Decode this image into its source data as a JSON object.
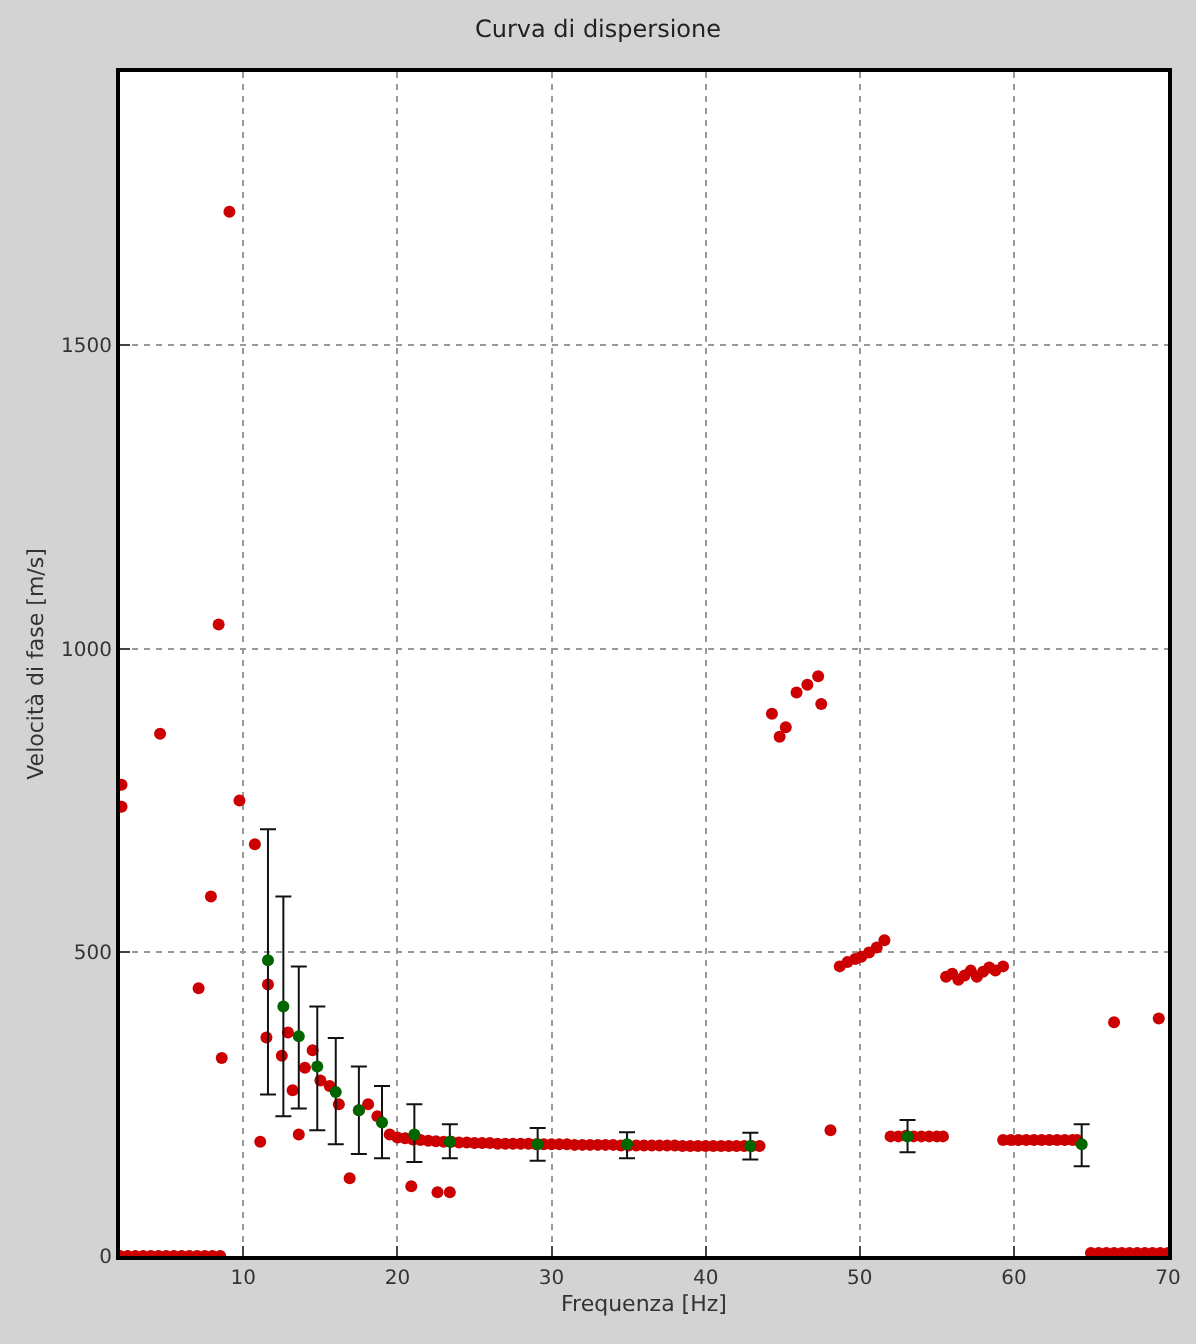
{
  "chart_data": {
    "type": "scatter",
    "title": "Curva di dispersione",
    "xlabel": "Frequenza [Hz]",
    "ylabel": "Velocità di fase [m/s]",
    "xlim": [
      2,
      70
    ],
    "ylim": [
      0,
      1950
    ],
    "xticks": [
      10,
      20,
      30,
      40,
      50,
      60,
      70
    ],
    "yticks": [
      0,
      500,
      1000,
      1500
    ],
    "grid": true,
    "marker": "circle",
    "series": [
      {
        "color": "#cc0000",
        "x": [
          2,
          2.5,
          3,
          3.5,
          4,
          4.5,
          5,
          5.5,
          6,
          6.5,
          7,
          7.5,
          8,
          8.5,
          2.1,
          2.1,
          4.6,
          7.1,
          7.9,
          8.4,
          8.6,
          9.1,
          9.75,
          10.75,
          11.1,
          11.5,
          11.6,
          12.5,
          12.9,
          13.2,
          13.6,
          14,
          14.5,
          15,
          15.6,
          16.2,
          16.9,
          17.5,
          18.1,
          18.7,
          20.9,
          22.6,
          23.4,
          19.5,
          20,
          20.5,
          21,
          21.5,
          22,
          22.5,
          23,
          23.5,
          24,
          24.5,
          25,
          25.5,
          26,
          26.5,
          27,
          27.5,
          28,
          28.5,
          29,
          29.5,
          30,
          30.5,
          31,
          31.5,
          32,
          32.5,
          33,
          33.5,
          34,
          34.5,
          35,
          35.5,
          36,
          36.5,
          37,
          37.5,
          38,
          38.5,
          39,
          39.5,
          40,
          40.5,
          41,
          41.5,
          42,
          42.5,
          43,
          43.5,
          44.3,
          44.8,
          45.2,
          45.9,
          46.6,
          47.3,
          47.5,
          48.1,
          48.7,
          49.2,
          49.7,
          50.1,
          50.6,
          51.1,
          51.6,
          52,
          52.5,
          53,
          53.5,
          54,
          54.5,
          55,
          55.4,
          55.6,
          56,
          56.4,
          56.8,
          57.2,
          57.6,
          58,
          58.4,
          58.8,
          59.3,
          59.3,
          59.8,
          60.3,
          60.8,
          61.3,
          61.8,
          62.3,
          62.8,
          63.3,
          63.8,
          64.1,
          65,
          65.5,
          66,
          66.5,
          67,
          67.5,
          68,
          68.5,
          69,
          69.5,
          70,
          66.5,
          69.4
        ],
        "values": [
          0,
          0,
          0,
          0,
          0,
          0,
          0,
          0,
          0,
          0,
          0,
          0,
          0,
          0,
          776,
          740,
          860,
          441,
          592,
          1040,
          326,
          1720,
          750,
          678,
          188,
          360,
          447,
          330,
          368,
          273,
          200,
          310,
          339,
          289,
          280,
          250,
          128,
          240,
          250,
          230,
          115,
          105,
          105,
          200,
          195,
          194,
          192,
          191,
          190,
          189,
          188,
          188,
          187,
          187,
          186,
          186,
          186,
          185,
          185,
          185,
          185,
          185,
          184,
          184,
          184,
          184,
          184,
          183,
          183,
          183,
          183,
          183,
          183,
          182,
          182,
          182,
          182,
          182,
          182,
          182,
          182,
          181,
          181,
          181,
          181,
          181,
          181,
          181,
          181,
          181,
          181,
          181,
          893,
          855,
          871,
          928,
          941,
          955,
          909,
          207,
          477,
          484,
          489,
          493,
          500,
          508,
          520,
          197,
          197,
          198,
          197,
          197,
          197,
          197,
          197,
          460,
          465,
          455,
          462,
          470,
          460,
          468,
          475,
          470,
          477,
          191,
          191,
          191,
          191,
          191,
          191,
          191,
          191,
          191,
          191,
          191,
          5,
          5,
          5,
          5,
          5,
          5,
          5,
          5,
          5,
          5,
          5,
          385,
          391
        ]
      },
      {
        "color": "#006600",
        "x": [
          11.6,
          12.6,
          13.6,
          14.8,
          16,
          17.5,
          19,
          21.1,
          23.4,
          29.1,
          34.9,
          42.9,
          53.1,
          64.4
        ],
        "values": [
          487,
          411,
          362,
          312,
          270,
          240,
          220,
          200,
          188,
          184,
          184,
          181,
          197,
          184
        ],
        "errors": [
          [
            266,
            703
          ],
          [
            230,
            592
          ],
          [
            243,
            477
          ],
          [
            207,
            411
          ],
          [
            184,
            359
          ],
          [
            168,
            312
          ],
          [
            161,
            280
          ],
          [
            155,
            250
          ],
          [
            161,
            217
          ],
          [
            157,
            211
          ],
          [
            161,
            204
          ],
          [
            159,
            203
          ],
          [
            171,
            224
          ],
          [
            148,
            217
          ]
        ]
      }
    ]
  }
}
